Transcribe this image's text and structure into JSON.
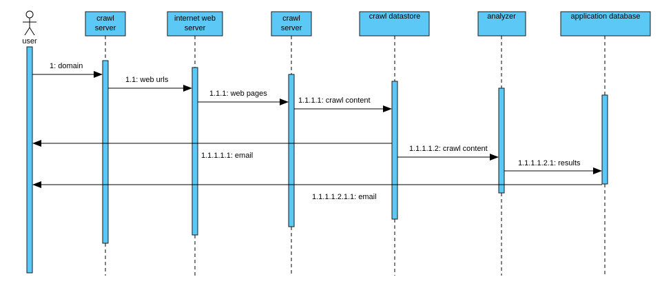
{
  "diagram": {
    "type": "sequence",
    "colors": {
      "box": "#5bc8f5",
      "line": "#000000",
      "background": "#ffffff"
    },
    "actor": {
      "id": "user",
      "label": "user"
    },
    "participants": [
      {
        "id": "crawl1",
        "lines": [
          "crawl",
          "server"
        ]
      },
      {
        "id": "web",
        "lines": [
          "internet web",
          "server"
        ]
      },
      {
        "id": "crawl2",
        "lines": [
          "crawl",
          "server"
        ]
      },
      {
        "id": "store",
        "lines": [
          "crawl datastore"
        ]
      },
      {
        "id": "analyzer",
        "lines": [
          "analyzer"
        ]
      },
      {
        "id": "appdb",
        "lines": [
          "application database"
        ]
      }
    ],
    "messages": [
      {
        "id": "m1",
        "label": "1: domain",
        "from": "user",
        "to": "crawl1"
      },
      {
        "id": "m2",
        "label": "1.1: web urls",
        "from": "crawl1",
        "to": "web"
      },
      {
        "id": "m3",
        "label": "1.1.1: web pages",
        "from": "web",
        "to": "crawl2"
      },
      {
        "id": "m4",
        "label": "1.1.1.1: crawl content",
        "from": "crawl2",
        "to": "store"
      },
      {
        "id": "m5",
        "label": "1.1.1.1.1: email",
        "from": "store",
        "to": "user"
      },
      {
        "id": "m6",
        "label": "1.1.1.1.2: crawl content",
        "from": "store",
        "to": "analyzer"
      },
      {
        "id": "m7",
        "label": "1.1.1.1.2.1: results",
        "from": "analyzer",
        "to": "appdb"
      },
      {
        "id": "m8",
        "label": "1.1.1.1.2.1.1: email",
        "from": "appdb",
        "to": "user"
      }
    ]
  }
}
